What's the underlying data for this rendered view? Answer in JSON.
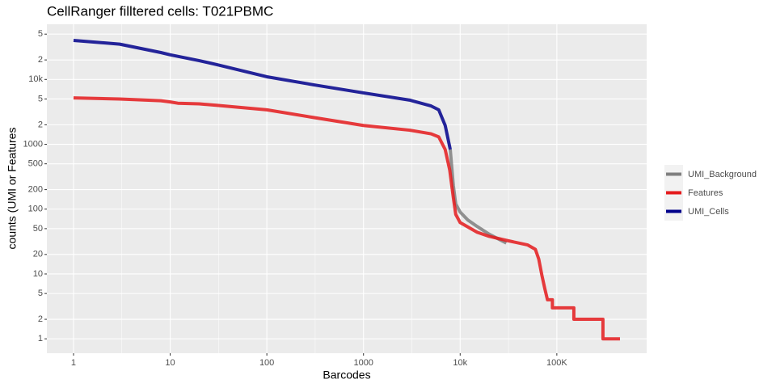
{
  "chart_data": {
    "type": "line",
    "title": "CellRanger filltered cells: T021PBMC",
    "x_label": "Barcodes",
    "y_label": "counts (UMI or Features",
    "log_x": true,
    "log_y": true,
    "grid": true,
    "legend": "right",
    "xlim": [
      0.53,
      850000
    ],
    "ylim": [
      0.6,
      71000
    ],
    "xticks": [
      1,
      10,
      100,
      1000,
      {
        "value": 10000,
        "label": "10k"
      },
      {
        "value": 100000,
        "label": "100K"
      }
    ],
    "yticks": [
      1,
      2,
      5,
      10,
      20,
      50,
      100,
      200,
      500,
      1000,
      {
        "value": 2000,
        "label": "2"
      },
      {
        "value": 5000,
        "label": "5"
      },
      {
        "value": 10000,
        "label": "10k"
      },
      {
        "value": 20000,
        "label": "2"
      },
      {
        "value": 50000,
        "label": "5"
      }
    ],
    "series": [
      {
        "name": "UMI_Background",
        "color": "#7f7f7f",
        "x": [
          7900,
          8500,
          9000,
          10000,
          12000,
          15000,
          20000,
          30000
        ],
        "values": [
          830,
          230,
          120,
          90,
          68,
          54,
          41,
          30
        ]
      },
      {
        "name": "Features",
        "color": "#e41a1c",
        "x": [
          1,
          3,
          8,
          10,
          12,
          20,
          30,
          100,
          300,
          1000,
          3000,
          5000,
          6000,
          7000,
          7800,
          8500,
          9000,
          10000,
          15000,
          20000,
          30000,
          50000,
          60000,
          65000,
          70000,
          75000,
          80000,
          90000,
          90000,
          150000,
          150000,
          300000,
          300000,
          450000
        ],
        "values": [
          5200,
          5000,
          4700,
          4500,
          4300,
          4200,
          4000,
          3400,
          2600,
          1950,
          1650,
          1450,
          1300,
          830,
          400,
          150,
          83,
          62,
          44,
          38,
          33,
          28,
          24,
          17,
          9.6,
          6,
          4,
          4,
          3,
          3,
          2,
          2,
          1,
          1
        ]
      },
      {
        "name": "UMI_Cells",
        "color": "#00008b",
        "x": [
          1,
          3,
          8,
          10,
          20,
          30,
          100,
          300,
          1000,
          3000,
          5000,
          6000,
          7000,
          7900
        ],
        "values": [
          40000,
          35000,
          26000,
          24000,
          19500,
          17000,
          11000,
          8300,
          6200,
          4800,
          3900,
          3400,
          1950,
          830
        ]
      }
    ]
  }
}
